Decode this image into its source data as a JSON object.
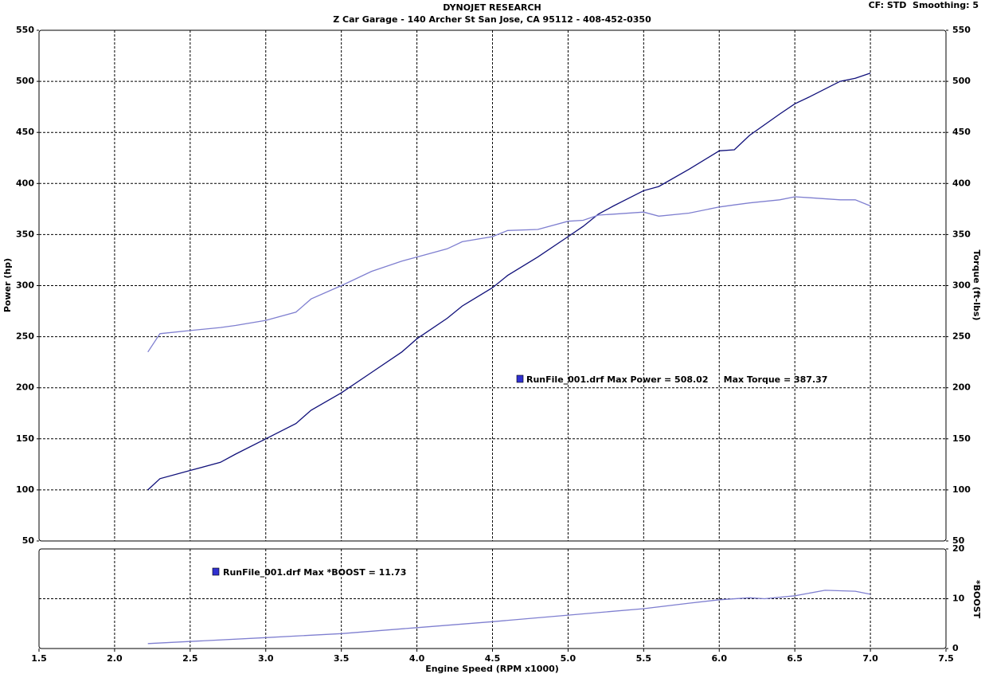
{
  "chart_data": [
    {
      "type": "line",
      "title": "DYNOJET RESEARCH",
      "subtitle": "Z Car Garage - 140 Archer St San Jose, CA 95112 - 408-452-0350",
      "settings_text": "CF: STD  Smoothing: 5",
      "ylabel": "Power (hp)",
      "y2label": "Torque (ft-lbs)",
      "annotation": "RunFile_001.drf Max Power = 508.02     Max Torque = 387.37",
      "ylim": [
        50,
        550
      ],
      "yticks": [
        50,
        100,
        150,
        200,
        250,
        300,
        350,
        400,
        450,
        500,
        550
      ],
      "y2lim": [
        50,
        550
      ],
      "y2ticks": [
        50,
        100,
        150,
        200,
        250,
        300,
        350,
        400,
        450,
        500,
        550
      ],
      "grid": true,
      "x": [
        2.22,
        2.3,
        2.5,
        2.7,
        2.8,
        3.0,
        3.2,
        3.3,
        3.5,
        3.7,
        3.9,
        4.0,
        4.2,
        4.3,
        4.5,
        4.6,
        4.8,
        5.0,
        5.1,
        5.2,
        5.3,
        5.5,
        5.6,
        5.8,
        6.0,
        6.1,
        6.2,
        6.4,
        6.5,
        6.6,
        6.8,
        6.9,
        7.0
      ],
      "series": [
        {
          "color": "#10107a",
          "values": [
            100,
            111,
            119,
            127,
            135,
            150,
            165,
            178,
            195,
            215,
            235,
            248,
            268,
            280,
            298,
            310,
            328,
            348,
            358,
            370,
            378,
            393,
            397,
            414,
            432,
            433,
            447,
            468,
            478,
            485,
            500,
            503,
            508
          ]
        },
        {
          "color": "#7f7fd0",
          "axis": "y2",
          "values": [
            235,
            253,
            256,
            259,
            261,
            266,
            274,
            287,
            300,
            314,
            324,
            328,
            336,
            343,
            348,
            354,
            355,
            363,
            364,
            369,
            370,
            372,
            368,
            371,
            377,
            379,
            381,
            384,
            387,
            386,
            384,
            384,
            378
          ]
        }
      ]
    },
    {
      "type": "line",
      "xlabel": "Engine Speed (RPM x1000)",
      "y2label": "*BOOST",
      "annotation": "RunFile_001.drf Max *BOOST = 11.73",
      "xlim": [
        1.5,
        7.5
      ],
      "xticks": [
        1.5,
        {
          "value": 2,
          "label": "2.0"
        },
        2.5,
        {
          "value": 3,
          "label": "3.0"
        },
        3.5,
        {
          "value": 4,
          "label": "4.0"
        },
        4.5,
        {
          "value": 5,
          "label": "5.0"
        },
        5.5,
        {
          "value": 6,
          "label": "6.0"
        },
        6.5,
        {
          "value": 7,
          "label": "7.0"
        },
        7.5
      ],
      "y2lim": [
        0,
        20
      ],
      "y2ticks": [
        0,
        10,
        20
      ],
      "grid": true,
      "x": [
        2.22,
        3.0,
        3.5,
        4.0,
        4.5,
        5.0,
        5.5,
        5.8,
        6.0,
        6.2,
        6.3,
        6.5,
        6.7,
        6.9,
        7.0
      ],
      "series": [
        {
          "color": "#7f7fd0",
          "axis": "y2",
          "values": [
            1,
            2.2,
            3,
            4.2,
            5.4,
            6.7,
            8,
            9.1,
            9.8,
            10.2,
            10,
            10.6,
            11.7,
            11.5,
            10.9
          ]
        }
      ]
    }
  ]
}
